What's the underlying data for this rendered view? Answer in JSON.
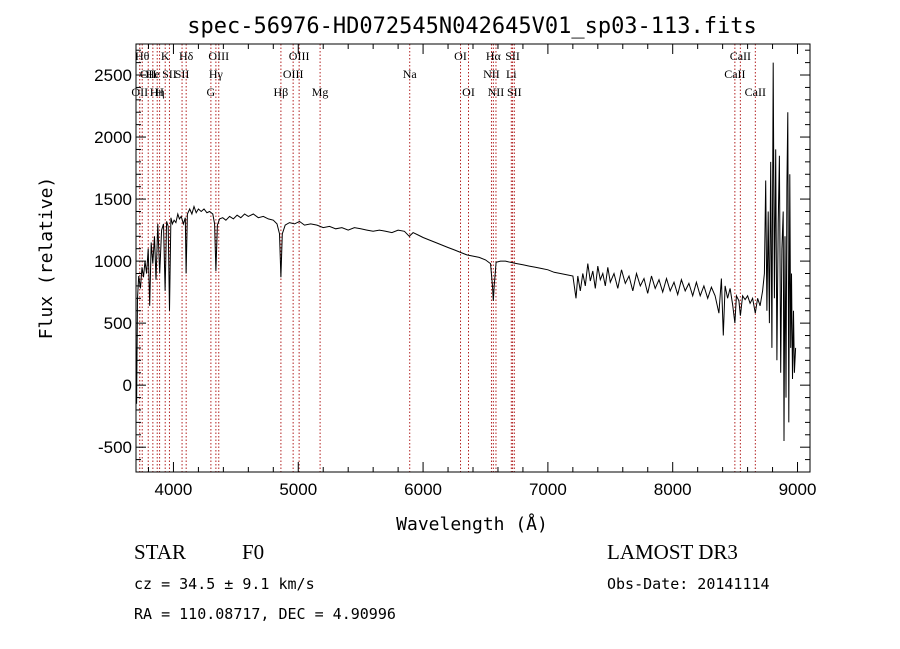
{
  "chart_data": {
    "type": "line",
    "title": "spec-56976-HD072545N042645V01_sp03-113.fits",
    "xlabel": "Wavelength (Å)",
    "ylabel": "Flux (relative)",
    "xlim": [
      3700,
      9100
    ],
    "ylim": [
      -700,
      2750
    ],
    "xticks": [
      4000,
      5000,
      6000,
      7000,
      8000,
      9000
    ],
    "yticks": [
      -500,
      0,
      500,
      1000,
      1500,
      2000,
      2500
    ],
    "grid": false,
    "series": [
      {
        "color": "#000000",
        "points": [
          [
            3700,
            300
          ],
          [
            3705,
            -150
          ],
          [
            3712,
            700
          ],
          [
            3722,
            880
          ],
          [
            3735,
            780
          ],
          [
            3748,
            950
          ],
          [
            3760,
            870
          ],
          [
            3772,
            1000
          ],
          [
            3785,
            900
          ],
          [
            3798,
            1100
          ],
          [
            3810,
            640
          ],
          [
            3822,
            1150
          ],
          [
            3835,
            980
          ],
          [
            3848,
            1200
          ],
          [
            3860,
            850
          ],
          [
            3875,
            1300
          ],
          [
            3890,
            900
          ],
          [
            3905,
            1250
          ],
          [
            3920,
            1300
          ],
          [
            3933,
            760
          ],
          [
            3945,
            1320
          ],
          [
            3958,
            1280
          ],
          [
            3968,
            600
          ],
          [
            3980,
            1350
          ],
          [
            3992,
            1300
          ],
          [
            4005,
            1330
          ],
          [
            4020,
            1310
          ],
          [
            4035,
            1380
          ],
          [
            4048,
            1340
          ],
          [
            4062,
            1360
          ],
          [
            4080,
            1300
          ],
          [
            4095,
            1350
          ],
          [
            4101,
            900
          ],
          [
            4112,
            1380
          ],
          [
            4130,
            1420
          ],
          [
            4148,
            1380
          ],
          [
            4165,
            1440
          ],
          [
            4182,
            1390
          ],
          [
            4200,
            1420
          ],
          [
            4222,
            1400
          ],
          [
            4245,
            1420
          ],
          [
            4268,
            1390
          ],
          [
            4290,
            1400
          ],
          [
            4315,
            1380
          ],
          [
            4330,
            1300
          ],
          [
            4340,
            920
          ],
          [
            4352,
            1290
          ],
          [
            4370,
            1340
          ],
          [
            4395,
            1350
          ],
          [
            4420,
            1330
          ],
          [
            4450,
            1360
          ],
          [
            4480,
            1340
          ],
          [
            4510,
            1370
          ],
          [
            4540,
            1350
          ],
          [
            4570,
            1380
          ],
          [
            4600,
            1360
          ],
          [
            4640,
            1380
          ],
          [
            4680,
            1350
          ],
          [
            4720,
            1360
          ],
          [
            4760,
            1340
          ],
          [
            4800,
            1330
          ],
          [
            4830,
            1300
          ],
          [
            4850,
            1220
          ],
          [
            4861,
            870
          ],
          [
            4872,
            1220
          ],
          [
            4895,
            1290
          ],
          [
            4930,
            1310
          ],
          [
            4970,
            1300
          ],
          [
            5010,
            1320
          ],
          [
            5050,
            1290
          ],
          [
            5100,
            1300
          ],
          [
            5150,
            1290
          ],
          [
            5200,
            1270
          ],
          [
            5250,
            1280
          ],
          [
            5300,
            1260
          ],
          [
            5350,
            1270
          ],
          [
            5400,
            1250
          ],
          [
            5450,
            1270
          ],
          [
            5500,
            1260
          ],
          [
            5550,
            1250
          ],
          [
            5600,
            1240
          ],
          [
            5650,
            1250
          ],
          [
            5700,
            1240
          ],
          [
            5750,
            1230
          ],
          [
            5800,
            1250
          ],
          [
            5850,
            1240
          ],
          [
            5890,
            1200
          ],
          [
            5920,
            1230
          ],
          [
            5960,
            1210
          ],
          [
            6000,
            1190
          ],
          [
            6050,
            1170
          ],
          [
            6100,
            1150
          ],
          [
            6150,
            1130
          ],
          [
            6200,
            1110
          ],
          [
            6250,
            1090
          ],
          [
            6300,
            1070
          ],
          [
            6350,
            1050
          ],
          [
            6400,
            1040
          ],
          [
            6450,
            1030
          ],
          [
            6500,
            1010
          ],
          [
            6540,
            980
          ],
          [
            6556,
            800
          ],
          [
            6563,
            680
          ],
          [
            6570,
            800
          ],
          [
            6585,
            990
          ],
          [
            6620,
            1000
          ],
          [
            6660,
            1000
          ],
          [
            6700,
            990
          ],
          [
            6750,
            980
          ],
          [
            6800,
            970
          ],
          [
            6850,
            960
          ],
          [
            6900,
            950
          ],
          [
            6950,
            940
          ],
          [
            7000,
            930
          ],
          [
            7050,
            910
          ],
          [
            7100,
            900
          ],
          [
            7150,
            890
          ],
          [
            7200,
            880
          ],
          [
            7225,
            700
          ],
          [
            7240,
            880
          ],
          [
            7260,
            760
          ],
          [
            7280,
            900
          ],
          [
            7300,
            800
          ],
          [
            7320,
            980
          ],
          [
            7340,
            840
          ],
          [
            7360,
            920
          ],
          [
            7380,
            780
          ],
          [
            7400,
            960
          ],
          [
            7420,
            850
          ],
          [
            7440,
            900
          ],
          [
            7460,
            800
          ],
          [
            7480,
            950
          ],
          [
            7500,
            830
          ],
          [
            7530,
            900
          ],
          [
            7560,
            780
          ],
          [
            7590,
            930
          ],
          [
            7620,
            820
          ],
          [
            7650,
            880
          ],
          [
            7680,
            760
          ],
          [
            7710,
            900
          ],
          [
            7740,
            800
          ],
          [
            7770,
            860
          ],
          [
            7800,
            740
          ],
          [
            7830,
            880
          ],
          [
            7860,
            780
          ],
          [
            7890,
            850
          ],
          [
            7920,
            750
          ],
          [
            7950,
            860
          ],
          [
            7980,
            760
          ],
          [
            8010,
            830
          ],
          [
            8040,
            730
          ],
          [
            8070,
            850
          ],
          [
            8100,
            760
          ],
          [
            8130,
            820
          ],
          [
            8160,
            720
          ],
          [
            8190,
            830
          ],
          [
            8220,
            720
          ],
          [
            8250,
            800
          ],
          [
            8280,
            700
          ],
          [
            8310,
            790
          ],
          [
            8340,
            720
          ],
          [
            8370,
            580
          ],
          [
            8390,
            860
          ],
          [
            8405,
            400
          ],
          [
            8420,
            800
          ],
          [
            8440,
            700
          ],
          [
            8460,
            780
          ],
          [
            8480,
            650
          ],
          [
            8498,
            500
          ],
          [
            8510,
            720
          ],
          [
            8530,
            680
          ],
          [
            8542,
            560
          ],
          [
            8560,
            720
          ],
          [
            8580,
            690
          ],
          [
            8600,
            720
          ],
          [
            8620,
            660
          ],
          [
            8640,
            700
          ],
          [
            8662,
            580
          ],
          [
            8680,
            700
          ],
          [
            8700,
            640
          ],
          [
            8720,
            760
          ],
          [
            8735,
            900
          ],
          [
            8745,
            1650
          ],
          [
            8755,
            600
          ],
          [
            8765,
            1400
          ],
          [
            8775,
            500
          ],
          [
            8785,
            1800
          ],
          [
            8795,
            300
          ],
          [
            8805,
            2600
          ],
          [
            8815,
            700
          ],
          [
            8825,
            1900
          ],
          [
            8835,
            200
          ],
          [
            8845,
            1300
          ],
          [
            8855,
            1850
          ],
          [
            8865,
            100
          ],
          [
            8875,
            1100
          ],
          [
            8885,
            1400
          ],
          [
            8892,
            -450
          ],
          [
            8900,
            1200
          ],
          [
            8908,
            -100
          ],
          [
            8915,
            1600
          ],
          [
            8922,
            2200
          ],
          [
            8930,
            -300
          ],
          [
            8938,
            1700
          ],
          [
            8945,
            300
          ],
          [
            8952,
            900
          ],
          [
            8960,
            50
          ],
          [
            8968,
            600
          ],
          [
            8975,
            100
          ],
          [
            8985,
            300
          ]
        ]
      }
    ],
    "lines": [
      {
        "x": 3750,
        "row": 0,
        "label": "Hθ"
      },
      {
        "x": 3798,
        "row": 1,
        "label": "OII"
      },
      {
        "x": 3730,
        "row": 2,
        "label": "OII"
      },
      {
        "x": 3835,
        "row": 1,
        "label": "He"
      },
      {
        "x": 3870,
        "row": 2,
        "label": "Hη"
      },
      {
        "x": 3889,
        "row": 2,
        "label": "H"
      },
      {
        "x": 3934,
        "row": 0,
        "label": "K"
      },
      {
        "x": 3968,
        "row": 1,
        "label": "SII"
      },
      {
        "x": 4102,
        "row": 0,
        "label": "Hδ"
      },
      {
        "x": 4069,
        "row": 1,
        "label": "SII"
      },
      {
        "x": 4300,
        "row": 2,
        "label": "G"
      },
      {
        "x": 4340,
        "row": 1,
        "label": "Hγ"
      },
      {
        "x": 4363,
        "row": 0,
        "label": "OIII"
      },
      {
        "x": 4861,
        "row": 2,
        "label": "Hβ"
      },
      {
        "x": 4959,
        "row": 1,
        "label": "OIII"
      },
      {
        "x": 5007,
        "row": 0,
        "label": "OIII"
      },
      {
        "x": 5175,
        "row": 2,
        "label": "Mg"
      },
      {
        "x": 5893,
        "row": 1,
        "label": "Na"
      },
      {
        "x": 6300,
        "row": 0,
        "label": "OI"
      },
      {
        "x": 6364,
        "row": 2,
        "label": "OI"
      },
      {
        "x": 6548,
        "row": 1,
        "label": "NII"
      },
      {
        "x": 6563,
        "row": 0,
        "label": "Hα"
      },
      {
        "x": 6584,
        "row": 2,
        "label": "NII"
      },
      {
        "x": 6707,
        "row": 1,
        "label": "Li"
      },
      {
        "x": 6717,
        "row": 0,
        "label": "SII"
      },
      {
        "x": 6731,
        "row": 2,
        "label": "SII"
      },
      {
        "x": 8498,
        "row": 1,
        "label": "CaII"
      },
      {
        "x": 8542,
        "row": 0,
        "label": "CaII"
      },
      {
        "x": 8662,
        "row": 2,
        "label": "CaII"
      }
    ]
  },
  "info": {
    "class": "STAR",
    "subclass": "F0",
    "survey": "LAMOST DR3",
    "cz": "cz = 34.5 ± 9.1 km/s",
    "obsdate": "Obs-Date: 20141114",
    "coords": "RA = 110.08717, DEC =   4.90996"
  }
}
